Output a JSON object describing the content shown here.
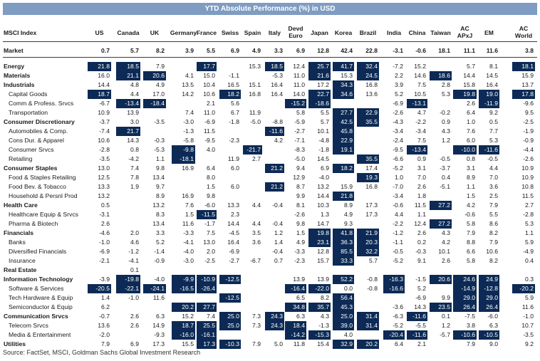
{
  "title": "YTD Absolute Performance (%) in USD",
  "source": "Source: FactSet, MSCI, Goldman Sachs Global Investment Research",
  "colors": {
    "title_bg": "#7f9cc2",
    "highlight_bg": "#0c2a55",
    "highlight_text": "#ffffff"
  },
  "chart_data": {
    "type": "table",
    "row_header": "MSCI Index",
    "columns": [
      [
        "US"
      ],
      [
        "Canada"
      ],
      [
        "UK"
      ],
      [
        "Germany"
      ],
      [
        "France"
      ],
      [
        "Swiss"
      ],
      [
        "Spain"
      ],
      [
        "Italy"
      ],
      [
        "Devd",
        "Euro"
      ],
      [
        "Japan"
      ],
      [
        "Korea"
      ],
      [
        "Brazil"
      ],
      [
        "India"
      ],
      [
        "China"
      ],
      [
        "Taiwan"
      ],
      [
        "AC",
        "APxJ"
      ],
      [
        "EM"
      ],
      [
        "AC",
        "World"
      ]
    ],
    "rows": [
      {
        "label": "Market",
        "level": 0,
        "values": [
          "0.7",
          "5.7",
          "8.2",
          "3.9",
          "5.5",
          "6.9",
          "4.9",
          "3.3",
          "6.9",
          "12.8",
          "42.4",
          "22.8",
          "-3.1",
          "-0.6",
          "18.1",
          "11.1",
          "11.6",
          "3.8"
        ],
        "hl": []
      },
      {
        "label": "Energy",
        "level": 0,
        "values": [
          "21.8",
          "18.5",
          "7.9",
          "",
          "17.7",
          "",
          "15.3",
          "18.5",
          "12.4",
          "25.7",
          "41.7",
          "32.4",
          "-7.2",
          "15.2",
          "",
          "5.7",
          "8.1",
          "18.1"
        ],
        "hl": [
          0,
          1,
          4,
          7,
          9,
          10,
          11,
          17
        ]
      },
      {
        "label": "Materials",
        "level": 0,
        "values": [
          "16.0",
          "21.1",
          "20.6",
          "4.1",
          "15.0",
          "-1.1",
          "",
          "-5.3",
          "11.0",
          "21.6",
          "15.3",
          "24.5",
          "2.2",
          "14.6",
          "18.6",
          "14.4",
          "14.5",
          "15.9"
        ],
        "hl": [
          1,
          2,
          9,
          11,
          14
        ]
      },
      {
        "label": "Industrials",
        "level": 0,
        "values": [
          "14.4",
          "4.8",
          "4.9",
          "13.5",
          "10.4",
          "16.5",
          "15.1",
          "16.4",
          "11.0",
          "17.2",
          "34.3",
          "16.8",
          "3.9",
          "7.5",
          "2.8",
          "15.8",
          "16.4",
          "13.7"
        ],
        "hl": [
          10
        ]
      },
      {
        "label": "Capital Goods",
        "level": 1,
        "values": [
          "18.7",
          "4.4",
          "17.0",
          "14.2",
          "10.6",
          "18.2",
          "16.8",
          "16.4",
          "14.0",
          "22.7",
          "34.6",
          "13.6",
          "5.2",
          "10.5",
          "5.3",
          "19.8",
          "19.0",
          "17.8"
        ],
        "hl": [
          0,
          5,
          9,
          10,
          15,
          16,
          17
        ]
      },
      {
        "label": "Comm & Profess. Srvcs",
        "level": 1,
        "values": [
          "-6.7",
          "-13.4",
          "-18.4",
          "",
          "2.1",
          "5.6",
          "",
          "",
          "-15.2",
          "-18.6",
          "",
          "",
          "-6.9",
          "-13.1",
          "",
          "2.6",
          "-11.9",
          "-9.6"
        ],
        "hl": [
          1,
          2,
          8,
          9,
          13,
          16
        ]
      },
      {
        "label": "Transportation",
        "level": 1,
        "values": [
          "10.9",
          "13.9",
          "",
          "7.4",
          "11.0",
          "6.7",
          "11.9",
          "",
          "5.8",
          "5.5",
          "27.7",
          "22.9",
          "-2.6",
          "4.7",
          "-0.2",
          "6.4",
          "9.2",
          "9.5"
        ],
        "hl": [
          10,
          11
        ]
      },
      {
        "label": "Consumer Discretionary",
        "level": 0,
        "values": [
          "-3.7",
          "3.0",
          "-3.5",
          "-3.0",
          "-6.9",
          "-1.8",
          "-5.0",
          "-8.8",
          "-5.9",
          "5.7",
          "42.5",
          "35.5",
          "-4.3",
          "-2.2",
          "0.9",
          "1.0",
          "0.5",
          "-2.5"
        ],
        "hl": [
          10,
          11
        ]
      },
      {
        "label": "Automobiles & Comp.",
        "level": 1,
        "values": [
          "-7.4",
          "21.7",
          "",
          "-1.3",
          "11.5",
          "",
          "",
          "-11.6",
          "-2.7",
          "10.1",
          "45.8",
          "",
          "-3.4",
          "-3.4",
          "4.3",
          "7.6",
          "7.7",
          "-1.9"
        ],
        "hl": [
          1,
          7,
          10
        ]
      },
      {
        "label": "Cons Dur. & Apparel",
        "level": 1,
        "values": [
          "10.6",
          "14.3",
          "-0.3",
          "-5.8",
          "-9.5",
          "-2.3",
          "",
          "4.2",
          "-7.1",
          "-4.8",
          "22.9",
          "",
          "-2.4",
          "7.5",
          "1.2",
          "6.0",
          "5.3",
          "-0.9"
        ],
        "hl": [
          10
        ]
      },
      {
        "label": "Consumer Srvcs",
        "level": 1,
        "values": [
          "-2.8",
          "0.8",
          "-5.3",
          "-9.8",
          "4.0",
          "",
          "-21.7",
          "",
          "-8.3",
          "-1.8",
          "19.1",
          "",
          "-9.5",
          "-13.4",
          "",
          "-10.0",
          "-11.6",
          "-4.4"
        ],
        "hl": [
          3,
          6,
          10,
          13,
          15,
          16
        ]
      },
      {
        "label": "Retailing",
        "level": 1,
        "values": [
          "-3.5",
          "-4.2",
          "1.1",
          "-18.1",
          "",
          "11.9",
          "2.7",
          "",
          "-5.0",
          "14.5",
          "",
          "35.5",
          "-6.6",
          "0.9",
          "-0.5",
          "0.8",
          "-0.5",
          "-2.6"
        ],
        "hl": [
          3,
          11
        ]
      },
      {
        "label": "Consumer Staples",
        "level": 0,
        "values": [
          "13.0",
          "7.4",
          "9.8",
          "16.9",
          "6.4",
          "6.0",
          "",
          "21.2",
          "9.4",
          "6.9",
          "18.2",
          "17.4",
          "-5.2",
          "3.1",
          "-3.7",
          "3.1",
          "4.4",
          "10.9"
        ],
        "hl": [
          7,
          10
        ]
      },
      {
        "label": "Food & Staples Retailing",
        "level": 1,
        "values": [
          "12.5",
          "7.8",
          "13.4",
          "",
          "8.0",
          "",
          "",
          "",
          "12.9",
          "-4.0",
          "",
          "19.3",
          "1.0",
          "7.0",
          "0.4",
          "8.9",
          "7.0",
          "10.9"
        ],
        "hl": [
          11
        ]
      },
      {
        "label": "Food Bev. & Tobacco",
        "level": 1,
        "values": [
          "13.3",
          "1.9",
          "9.7",
          "",
          "1.5",
          "6.0",
          "",
          "21.2",
          "8.7",
          "13.2",
          "15.9",
          "16.8",
          "-7.0",
          "2.6",
          "-5.1",
          "1.1",
          "3.6",
          "10.8"
        ],
        "hl": [
          7
        ]
      },
      {
        "label": "Household & Persnl Prod",
        "level": 1,
        "values": [
          "13.2",
          "",
          "8.9",
          "16.9",
          "9.8",
          "",
          "",
          "",
          "9.9",
          "14.4",
          "21.8",
          "",
          "-3.4",
          "1.8",
          "",
          "1.5",
          "2.5",
          "11.5"
        ],
        "hl": [
          10
        ]
      },
      {
        "label": "Health Care",
        "level": 0,
        "values": [
          "0.5",
          "",
          "13.2",
          "7.6",
          "-6.0",
          "13.3",
          "4.4",
          "-0.4",
          "8.1",
          "10.3",
          "8.9",
          "17.3",
          "-0.6",
          "11.5",
          "27.2",
          "4.2",
          "7.9",
          "2.7"
        ],
        "hl": [
          14
        ]
      },
      {
        "label": "Healthcare Equip & Srvcs",
        "level": 1,
        "values": [
          "-3.1",
          "",
          "8.3",
          "1.5",
          "-11.5",
          "2.3",
          "",
          "",
          "-2.6",
          "1.3",
          "4.9",
          "17.3",
          "4.4",
          "1.1",
          "",
          "-0.6",
          "5.5",
          "-2.8"
        ],
        "hl": [
          4
        ]
      },
      {
        "label": "Pharma & Biotech",
        "level": 1,
        "values": [
          "2.6",
          "",
          "13.4",
          "11.6",
          "-1.7",
          "14.4",
          "4.4",
          "-0.4",
          "9.8",
          "14.7",
          "9.3",
          "",
          "-2.2",
          "12.4",
          "27.2",
          "5.8",
          "8.6",
          "5.3"
        ],
        "hl": [
          14
        ]
      },
      {
        "label": "Financials",
        "level": 0,
        "values": [
          "-4.6",
          "2.0",
          "3.3",
          "-3.3",
          "7.5",
          "-4.5",
          "3.5",
          "1.2",
          "1.5",
          "19.8",
          "41.8",
          "21.9",
          "-1.2",
          "2.6",
          "4.3",
          "7.9",
          "8.2",
          "1.1"
        ],
        "hl": [
          9,
          10,
          11
        ]
      },
      {
        "label": "Banks",
        "level": 1,
        "values": [
          "-1.0",
          "4.6",
          "5.2",
          "-4.1",
          "13.0",
          "16.4",
          "3.6",
          "1.4",
          "4.9",
          "23.1",
          "36.3",
          "20.3",
          "-1.1",
          "0.2",
          "4.2",
          "8.8",
          "7.9",
          "5.9"
        ],
        "hl": [
          9,
          10,
          11
        ]
      },
      {
        "label": "Diversified Financials",
        "level": 1,
        "values": [
          "-6.9",
          "-1.2",
          "-1.4",
          "-4.0",
          "2.0",
          "-6.9",
          "",
          "-0.4",
          "-3.3",
          "12.8",
          "85.5",
          "32.2",
          "-0.5",
          "-0.3",
          "10.1",
          "6.6",
          "10.6",
          "-4.9"
        ],
        "hl": [
          10,
          11
        ]
      },
      {
        "label": "Insurance",
        "level": 1,
        "values": [
          "-2.1",
          "-4.1",
          "-0.9",
          "-3.0",
          "-2.5",
          "-2.7",
          "-6.7",
          "0.7",
          "-2.3",
          "15.7",
          "33.3",
          "5.7",
          "-5.2",
          "9.1",
          "2.6",
          "5.8",
          "8.2",
          "0.4"
        ],
        "hl": [
          10
        ]
      },
      {
        "label": "Real Estate",
        "level": 0,
        "values": [
          "",
          "0.1",
          "",
          "",
          "",
          "",
          "",
          "",
          "",
          "",
          "",
          "",
          "",
          "",
          "",
          "",
          "",
          ""
        ],
        "hl": []
      },
      {
        "label": "Information Technology",
        "level": 0,
        "values": [
          "-3.9",
          "-19.8",
          "-4.0",
          "-9.9",
          "-10.9",
          "-12.5",
          "",
          "",
          "13.9",
          "13.9",
          "52.2",
          "-0.8",
          "-16.3",
          "-1.5",
          "20.6",
          "24.6",
          "24.9",
          "0.3"
        ],
        "hl": [
          1,
          3,
          4,
          5,
          10,
          12,
          14,
          15,
          16
        ]
      },
      {
        "label": "Software & Services",
        "level": 1,
        "values": [
          "-20.5",
          "-22.1",
          "-24.1",
          "-16.5",
          "-26.4",
          "",
          "",
          "",
          "-16.4",
          "-22.0",
          "0.0",
          "-0.8",
          "-16.6",
          "5.2",
          "",
          "-14.9",
          "-12.8",
          "-20.2"
        ],
        "hl": [
          0,
          1,
          2,
          3,
          4,
          8,
          9,
          12,
          15,
          16,
          17
        ]
      },
      {
        "label": "Tech Hardware & Equip",
        "level": 1,
        "values": [
          "1.4",
          "-1.0",
          "11.6",
          "",
          "",
          "-12.5",
          "",
          "",
          "6.5",
          "8.2",
          "56.4",
          "",
          "",
          "-6.9",
          "9.9",
          "29.0",
          "29.0",
          "5.9"
        ],
        "hl": [
          5,
          10,
          15,
          16
        ]
      },
      {
        "label": "Semiconductor & Equip",
        "level": 1,
        "values": [
          "6.2",
          "",
          "",
          "20.2",
          "27.7",
          "",
          "",
          "",
          "34.8",
          "35.7",
          "45.3",
          "",
          "-3.6",
          "14.3",
          "23.5",
          "26.4",
          "26.4",
          "11.6"
        ],
        "hl": [
          3,
          4,
          8,
          9,
          10,
          14,
          15,
          16
        ]
      },
      {
        "label": "Communication Srvcs",
        "level": 0,
        "values": [
          "-0.7",
          "2.6",
          "6.3",
          "15.2",
          "7.4",
          "25.0",
          "7.3",
          "24.3",
          "6.3",
          "4.3",
          "25.0",
          "31.4",
          "-6.3",
          "-11.6",
          "0.1",
          "-7.5",
          "-6.0",
          "-1.0"
        ],
        "hl": [
          5,
          7,
          10,
          11,
          13
        ]
      },
      {
        "label": "Telecom Srvcs",
        "level": 1,
        "values": [
          "13.6",
          "2.6",
          "14.9",
          "18.7",
          "25.5",
          "25.0",
          "7.3",
          "24.3",
          "18.4",
          "-1.3",
          "39.0",
          "31.4",
          "-5.2",
          "-5.5",
          "1.2",
          "3.8",
          "6.3",
          "10.7"
        ],
        "hl": [
          3,
          4,
          5,
          7,
          8,
          10,
          11
        ]
      },
      {
        "label": "Media & Entertainment",
        "level": 1,
        "values": [
          "-2.0",
          "",
          "-9.3",
          "-16.0",
          "-16.1",
          "",
          "",
          "",
          "-14.2",
          "-15.3",
          "4.0",
          "",
          "-20.4",
          "-11.6",
          "-5.7",
          "-10.6",
          "-10.5",
          "-3.5"
        ],
        "hl": [
          3,
          4,
          8,
          9,
          12,
          13,
          15,
          16
        ]
      },
      {
        "label": "Utilities",
        "level": 0,
        "values": [
          "7.9",
          "6.9",
          "17.3",
          "15.5",
          "17.3",
          "-10.3",
          "7.9",
          "5.0",
          "11.8",
          "15.4",
          "32.9",
          "20.2",
          "6.4",
          "2.1",
          "",
          "7.9",
          "9.0",
          "9.2"
        ],
        "hl": [
          4,
          5,
          10,
          11
        ]
      }
    ]
  }
}
